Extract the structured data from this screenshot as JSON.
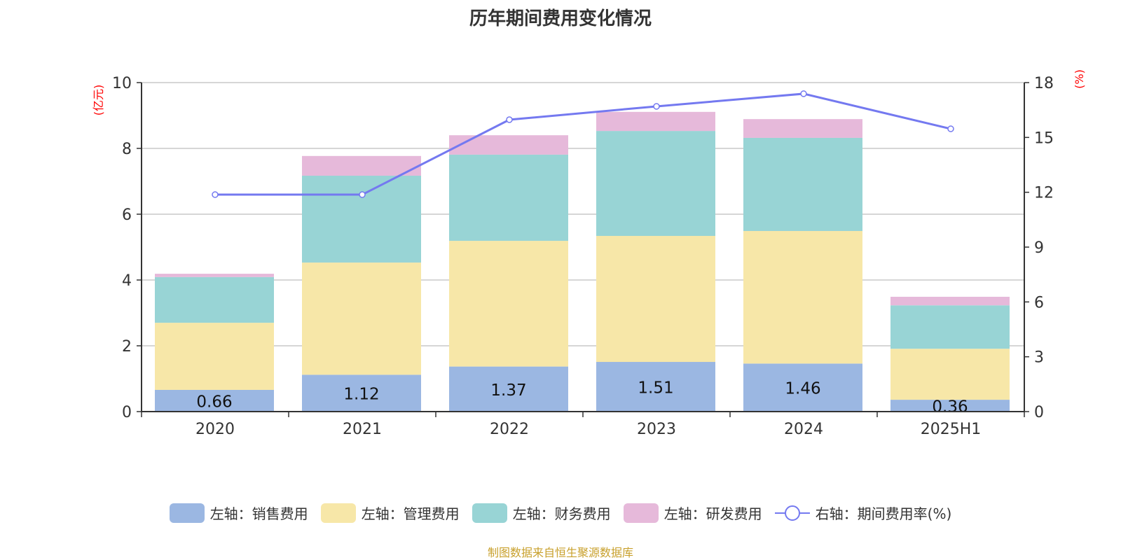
{
  "chart_data": {
    "type": "bar",
    "title": "历年期间费用变化情况",
    "categories": [
      "2020",
      "2021",
      "2022",
      "2023",
      "2024",
      "2025H1"
    ],
    "left_axis": {
      "label": "(亿元)",
      "ylim": [
        0,
        10
      ],
      "ticks": [
        "0",
        "2",
        "4",
        "6",
        "8",
        "10"
      ]
    },
    "right_axis": {
      "label": "(%)",
      "ylim": [
        0,
        18
      ],
      "ticks": [
        "0",
        "3",
        "6",
        "9",
        "12",
        "15",
        "18"
      ]
    },
    "grid": true,
    "legend_position": "bottom",
    "series": [
      {
        "name": "左轴：销售费用",
        "type": "bar",
        "stack": true,
        "color": "#9bb7e2",
        "values": [
          0.66,
          1.12,
          1.37,
          1.51,
          1.46,
          0.36
        ],
        "labels": [
          "0.66",
          "1.12",
          "1.37",
          "1.51",
          "1.46",
          "0.36"
        ]
      },
      {
        "name": "左轴：管理费用",
        "type": "bar",
        "stack": true,
        "color": "#f7e7a8",
        "values": [
          2.04,
          3.41,
          3.82,
          3.83,
          4.03,
          1.55
        ]
      },
      {
        "name": "左轴：财务费用",
        "type": "bar",
        "stack": true,
        "color": "#98d4d5",
        "values": [
          1.39,
          2.64,
          2.62,
          3.19,
          2.83,
          1.32
        ]
      },
      {
        "name": "左轴：研发费用",
        "type": "bar",
        "stack": true,
        "color": "#e6b9da",
        "values": [
          0.1,
          0.6,
          0.59,
          0.58,
          0.57,
          0.26
        ]
      },
      {
        "name": "右轴：期间费用率(%)",
        "type": "line",
        "axis": "right",
        "color": "#7479f0",
        "values": [
          11.87,
          11.87,
          15.97,
          16.7,
          17.39,
          15.47
        ]
      }
    ]
  },
  "source": "制图数据来自恒生聚源数据库"
}
